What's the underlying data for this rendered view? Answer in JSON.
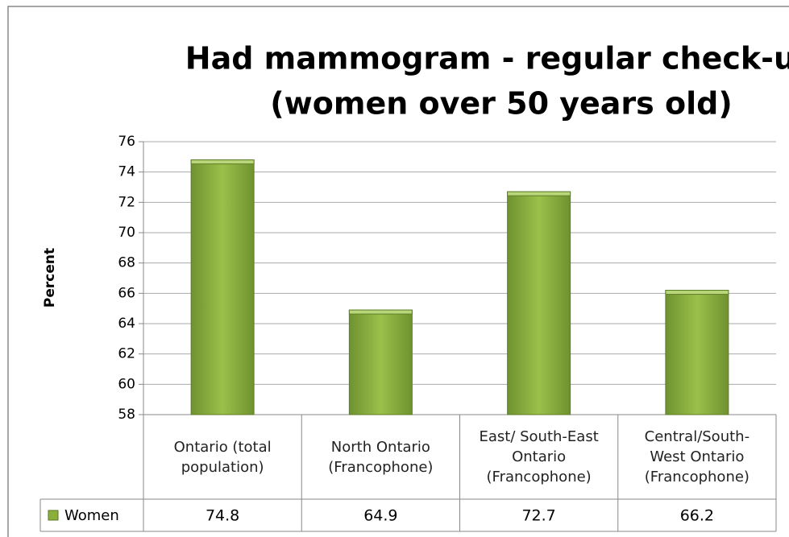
{
  "chart_data": {
    "type": "bar",
    "title": [
      "Had mammogram - regular check-up",
      "(women over 50 years old)"
    ],
    "y_label": "Percent",
    "categories": [
      "Ontario (total population)",
      "North Ontario (Francophone)",
      "East/ South-East Ontario (Francophone)",
      "Central/South-West Ontario (Francophone)"
    ],
    "series": [
      {
        "name": "Women",
        "color": "#8aaf3c",
        "values": [
          74.8,
          64.9,
          72.7,
          66.2
        ]
      }
    ],
    "ylim": [
      58,
      76
    ],
    "yticks": [
      58,
      60,
      62,
      64,
      66,
      68,
      70,
      72,
      74,
      76
    ],
    "grid": true
  }
}
